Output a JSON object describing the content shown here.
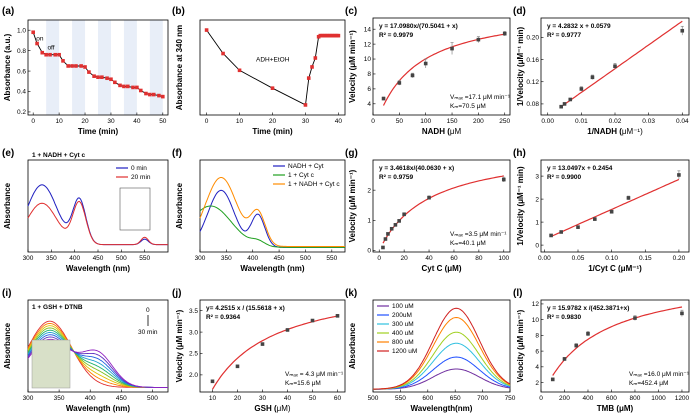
{
  "colors": {
    "red": "#e03030",
    "blue": "#2020c0",
    "green": "#20a020",
    "orange": "#ff8c00",
    "purple": "#8020c0",
    "marker": "#444444",
    "shade": "#e8eef8"
  },
  "chart_data": [
    {
      "id": "a",
      "panel_label": "(a)",
      "type": "line",
      "xlabel": "Time (min)",
      "ylabel": "Absorbance (a.u.)",
      "xlim": [
        -2,
        52
      ],
      "ylim": [
        0.17,
        1.1
      ],
      "xticks": [
        0,
        10,
        20,
        30,
        40,
        50
      ],
      "yticks": [
        0.2,
        0.4,
        0.6,
        0.8,
        1.0
      ],
      "ytick_labels": [
        "0.2",
        "0.4",
        "0.6",
        "0.8",
        "1.0"
      ],
      "x": [
        0,
        1.5,
        3.5,
        5,
        6.5,
        8.5,
        10,
        11.5,
        13.5,
        15,
        16.5,
        18.5,
        20,
        21.5,
        23.5,
        25,
        26.5,
        28.5,
        30,
        31.5,
        33.5,
        35,
        36.5,
        38.5,
        40,
        41.5,
        43.5,
        45,
        46.5,
        48.5,
        50
      ],
      "y": [
        0.98,
        0.87,
        0.78,
        0.76,
        0.76,
        0.76,
        0.76,
        0.7,
        0.65,
        0.65,
        0.65,
        0.65,
        0.64,
        0.59,
        0.55,
        0.54,
        0.54,
        0.53,
        0.52,
        0.49,
        0.46,
        0.45,
        0.45,
        0.44,
        0.44,
        0.41,
        0.38,
        0.37,
        0.37,
        0.36,
        0.35
      ],
      "annotations": [
        "on",
        "off"
      ]
    },
    {
      "id": "b",
      "panel_label": "(b)",
      "type": "line",
      "xlabel": "Time (min)",
      "ylabel": "Absorbance at 340 nm",
      "xlim": [
        -2,
        42
      ],
      "ylim": [
        0.12,
        0.97
      ],
      "xticks": [
        0,
        10,
        20,
        30,
        40
      ],
      "x": [
        0,
        5,
        10,
        20,
        30,
        31,
        32,
        33,
        34,
        34.5,
        35,
        35.5,
        36,
        36.5,
        37,
        37.5,
        38,
        38.5,
        39,
        39.5,
        40
      ],
      "y": [
        0.88,
        0.67,
        0.52,
        0.36,
        0.21,
        0.45,
        0.55,
        0.63,
        0.82,
        0.83,
        0.83,
        0.83,
        0.83,
        0.83,
        0.83,
        0.83,
        0.83,
        0.83,
        0.83,
        0.83,
        0.83
      ],
      "annotations": [
        "ADH+EtOH"
      ]
    },
    {
      "id": "c",
      "panel_label": "(c)",
      "type": "scatter",
      "xlabel": "NADH (",
      "xlabel_unit": "μM",
      "ylabel": "Velocity (μM min⁻¹)",
      "xlim": [
        0,
        260
      ],
      "ylim": [
        2.5,
        15.5
      ],
      "xticks": [
        0,
        50,
        100,
        150,
        200,
        250
      ],
      "yticks": [
        4,
        6,
        8,
        10,
        12,
        14
      ],
      "x": [
        20,
        50,
        75,
        100,
        150,
        200,
        250
      ],
      "y": [
        4.7,
        6.8,
        7.8,
        9.4,
        11.4,
        12.6,
        13.4
      ],
      "errors": [
        0.2,
        0.3,
        0.3,
        0.6,
        0.8,
        0.4,
        0.3
      ],
      "fit_equation": "y = 17.0980x/(70.5041 + x)",
      "r2": "R² = 0.9979",
      "vmax": "Vₘₐₓ =17.1 μM min⁻¹",
      "km": "Kₘ=70.5 μM",
      "fit": {
        "a": 17.098,
        "b": 70.5041
      }
    },
    {
      "id": "d",
      "panel_label": "(d)",
      "type": "scatter",
      "xlabel": "1/NADH (",
      "xlabel_unit": "μM⁻¹)",
      "ylabel": "1/Velocity (μM⁻¹ min)",
      "xlim": [
        -0.002,
        0.042
      ],
      "ylim": [
        0.06,
        0.235
      ],
      "xticks": [
        0.0,
        0.01,
        0.02,
        0.03,
        0.04
      ],
      "xtick_labels": [
        "0.00",
        "0.01",
        "0.02",
        "0.03",
        "0.04"
      ],
      "yticks": [
        0.08,
        0.12,
        0.16,
        0.2
      ],
      "ytick_labels": [
        "0.08",
        "0.12",
        "0.16",
        "0.20"
      ],
      "x": [
        0.004,
        0.005,
        0.0067,
        0.01,
        0.0133,
        0.02,
        0.04
      ],
      "y": [
        0.075,
        0.08,
        0.088,
        0.107,
        0.128,
        0.148,
        0.212
      ],
      "errors": [
        0.002,
        0.002,
        0.002,
        0.004,
        0.004,
        0.005,
        0.008
      ],
      "fit_equation": "y = 4.2832 x + 0.0579",
      "r2": "R² = 0.9777",
      "fit": {
        "slope": 4.2832,
        "intercept": 0.0579
      }
    },
    {
      "id": "e",
      "panel_label": "(e)",
      "type": "line",
      "xlabel": "Wavelength (nm)",
      "ylabel": "Absorbance",
      "xlim": [
        300,
        600
      ],
      "ylim": [
        0,
        1
      ],
      "xticks": [
        300,
        350,
        400,
        450,
        500,
        550
      ],
      "series": [
        {
          "name": "0 min",
          "color": "blue"
        },
        {
          "name": "20 min",
          "color": "red"
        }
      ],
      "legend_title": "1 + NADH + Cyt c"
    },
    {
      "id": "f",
      "panel_label": "(f)",
      "type": "line",
      "xlabel": "Wavelength (nm)",
      "ylabel": "Absorbance",
      "xlim": [
        300,
        575
      ],
      "ylim": [
        0,
        1
      ],
      "xticks": [
        300,
        350,
        400,
        450,
        500,
        550
      ],
      "series": [
        {
          "name": "NADH + Cyt",
          "color": "blue"
        },
        {
          "name": "1 + Cyt c",
          "color": "green"
        },
        {
          "name": "1 + NADH + Cyt c",
          "color": "orange"
        }
      ]
    },
    {
      "id": "g",
      "panel_label": "(g)",
      "type": "scatter",
      "xlabel": "Cyt C (μM)",
      "ylabel": "Velocity (μM min⁻¹)",
      "xlim": [
        -5,
        105
      ],
      "ylim": [
        -0.05,
        3.0
      ],
      "xticks": [
        0,
        20,
        40,
        60,
        80,
        100
      ],
      "yticks": [
        0,
        1,
        2
      ],
      "x": [
        3,
        5,
        7,
        10,
        13,
        16,
        20,
        40,
        100
      ],
      "y": [
        0.1,
        0.38,
        0.55,
        0.72,
        0.85,
        0.98,
        1.2,
        1.75,
        2.35
      ],
      "errors": [
        0.02,
        0.03,
        0.03,
        0.04,
        0.04,
        0.05,
        0.05,
        0.06,
        0.08
      ],
      "fit_equation": "y = 3.4618x/(40.0630 + x)",
      "r2": "R² = 0.9759",
      "vmax": "Vₘₐₓ =3.5 μM min⁻¹",
      "km": "Kₘ=40.1 μM",
      "fit": {
        "a": 3.4618,
        "b": 40.063
      }
    },
    {
      "id": "h",
      "panel_label": "(h)",
      "type": "scatter",
      "xlabel": "1/Cyt C (μM⁻¹)",
      "ylabel": "1/Velocity (μM⁻¹ min)",
      "xlim": [
        -0.005,
        0.215
      ],
      "ylim": [
        -0.3,
        3.7
      ],
      "xticks": [
        0.0,
        0.05,
        0.1,
        0.15,
        0.2
      ],
      "xtick_labels": [
        "0.00",
        "0.05",
        "0.10",
        "0.15",
        "0.20"
      ],
      "yticks": [
        0,
        1,
        2,
        3
      ],
      "x": [
        0.01,
        0.025,
        0.05,
        0.075,
        0.1,
        0.125,
        0.2
      ],
      "y": [
        0.42,
        0.57,
        0.78,
        1.13,
        1.45,
        2.05,
        3.05
      ],
      "errors": [
        0.04,
        0.05,
        0.05,
        0.06,
        0.07,
        0.08,
        0.18
      ],
      "fit_equation": "y = 13.0497x + 0.2454",
      "r2": "R² = 0.9900",
      "fit": {
        "slope": 13.0497,
        "intercept": 0.2454
      }
    },
    {
      "id": "i",
      "panel_label": "(i)",
      "type": "line",
      "xlabel": "Wavelength (nm)",
      "ylabel": "Absorbance",
      "xlim": [
        300,
        525
      ],
      "ylim": [
        0,
        1
      ],
      "xticks": [
        300,
        350,
        400,
        450,
        500
      ],
      "legend_title": "1 + GSH + DTNB",
      "annotations": [
        "0",
        "30 min"
      ]
    },
    {
      "id": "j",
      "panel_label": "(j)",
      "type": "scatter",
      "xlabel": "GSH (",
      "xlabel_unit": "μM)",
      "ylabel": "Velocity (μM min⁻¹)",
      "xlim": [
        5,
        63
      ],
      "ylim": [
        1.6,
        3.75
      ],
      "xticks": [
        10,
        20,
        30,
        40,
        50,
        60
      ],
      "yticks": [
        2.0,
        2.5,
        3.0,
        3.5
      ],
      "ytick_labels": [
        "2.0",
        "2.5",
        "3.0",
        "3.5"
      ],
      "x": [
        10,
        20,
        30,
        40,
        50,
        60
      ],
      "y": [
        1.85,
        2.2,
        2.72,
        3.05,
        3.27,
        3.38
      ],
      "fit_equation": "y= 4.2515 x / (15.5618 + x)",
      "r2": "R² = 0.9364",
      "vmax": "Vₘₐₓ = 4.3 μM min⁻¹",
      "km": "Kₘ=15.6 μM",
      "fit": {
        "a": 4.2515,
        "b": 15.5618
      }
    },
    {
      "id": "k",
      "panel_label": "(k)",
      "type": "line",
      "xlabel": "Wavelength(nm)",
      "ylabel": "Absorbance",
      "xlim": [
        500,
        750
      ],
      "ylim": [
        0,
        1
      ],
      "xticks": [
        500,
        550,
        600,
        650,
        700,
        750
      ],
      "series": [
        {
          "name": "100 uM",
          "color": "#7030a0",
          "peak": 0.22
        },
        {
          "name": "200uM",
          "color": "#2050ff",
          "peak": 0.35
        },
        {
          "name": "300 uM",
          "color": "#30c0e0",
          "peak": 0.5
        },
        {
          "name": "400 uM",
          "color": "#a0d020",
          "peak": 0.62
        },
        {
          "name": "800 uM",
          "color": "#ff8000",
          "peak": 0.78
        },
        {
          "name": "1200 uM",
          "color": "#d02020",
          "peak": 0.88
        }
      ]
    },
    {
      "id": "l",
      "panel_label": "(l)",
      "type": "scatter",
      "xlabel": "TMB (μM)",
      "ylabel": "Velocity (μM min⁻¹)",
      "xlim": [
        0,
        1260
      ],
      "ylim": [
        0.8,
        12.5
      ],
      "xticks": [
        0,
        200,
        400,
        600,
        800,
        1000,
        1200
      ],
      "yticks": [
        2,
        4,
        6,
        8,
        10,
        12
      ],
      "x": [
        100,
        200,
        300,
        400,
        800,
        1200
      ],
      "y": [
        2.4,
        5.0,
        6.7,
        8.2,
        10.2,
        10.8
      ],
      "errors": [
        0.2,
        0.2,
        0.25,
        0.3,
        0.3,
        0.4
      ],
      "fit_equation": "y = 15.9782 x /(452.3871+x)",
      "r2": "R² = 0.9830",
      "vmax": "Vₘₐₓ =16.0 μM min⁻¹",
      "km": "Kₘ=452.4 μM",
      "fit": {
        "a": 15.9782,
        "b": 452.3871
      }
    }
  ]
}
